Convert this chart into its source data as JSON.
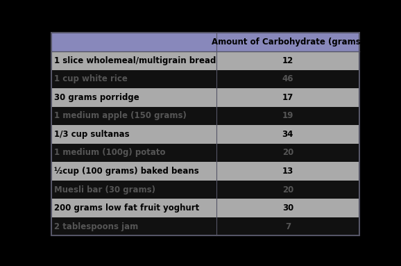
{
  "title": "Amount of Carbohydrate (grams)",
  "rows": [
    [
      "1 slice wholemeal/multigrain bread",
      "12"
    ],
    [
      "1 cup white rice",
      "46"
    ],
    [
      "30 grams porridge",
      "17"
    ],
    [
      "1 medium apple (150 grams)",
      "19"
    ],
    [
      "1/3 cup sultanas",
      "34"
    ],
    [
      "1 medium (100g) potato",
      "20"
    ],
    [
      "½cup (100 grams) baked beans",
      "13"
    ],
    [
      "Muesli bar (30 grams)",
      "20"
    ],
    [
      "200 grams low fat fruit yoghurt",
      "30"
    ],
    [
      "2 tablespoons jam",
      "7"
    ]
  ],
  "header_bg": "#8888bb",
  "row_bg_light": "#aaaaaa",
  "row_bg_dark": "#111111",
  "fig_bg": "#000000",
  "border_color": "#555566",
  "text_color_header": "#000000",
  "text_color_light": "#000000",
  "text_color_dark": "#555555",
  "col_split": 0.535,
  "font_size": 8.5,
  "header_font_size": 8.5
}
